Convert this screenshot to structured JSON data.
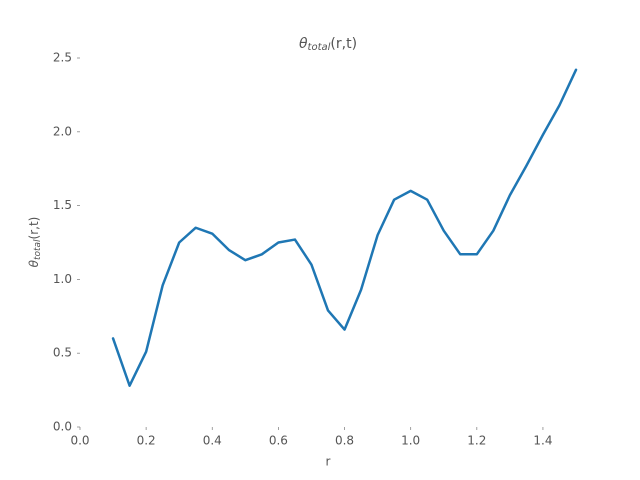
{
  "chart_data": {
    "type": "line",
    "title": [
      "θ",
      "total",
      "(r,t)"
    ],
    "xlabel": "r",
    "ylabel": [
      "θ",
      "total",
      "(r,t)"
    ],
    "x": [
      0.1,
      0.15,
      0.2,
      0.25,
      0.3,
      0.35,
      0.4,
      0.45,
      0.5,
      0.55,
      0.6,
      0.65,
      0.7,
      0.75,
      0.8,
      0.85,
      0.9,
      0.95,
      1.0,
      1.05,
      1.1,
      1.15,
      1.2,
      1.25,
      1.3,
      1.35,
      1.4,
      1.45,
      1.5
    ],
    "series": [
      {
        "color": "#1f77b4",
        "values": [
          0.6,
          0.28,
          0.51,
          0.96,
          1.25,
          1.35,
          1.31,
          1.2,
          1.13,
          1.17,
          1.25,
          1.27,
          1.1,
          0.79,
          0.66,
          0.93,
          1.3,
          1.54,
          1.6,
          1.54,
          1.33,
          1.17,
          1.17,
          1.33,
          1.57,
          1.77,
          1.98,
          2.18,
          2.42
        ]
      }
    ],
    "xlim": [
      0,
      1.5
    ],
    "ylim": [
      0,
      2.5
    ],
    "xticks": [
      {
        "value": 0,
        "label": "0.0"
      },
      {
        "value": 0.2,
        "label": "0.2"
      },
      {
        "value": 0.4,
        "label": "0.4"
      },
      {
        "value": 0.6,
        "label": "0.6"
      },
      {
        "value": 0.8,
        "label": "0.8"
      },
      {
        "value": 1,
        "label": "1.0"
      },
      {
        "value": 1.2,
        "label": "1.2"
      },
      {
        "value": 1.4,
        "label": "1.4"
      }
    ],
    "yticks": [
      {
        "value": 0,
        "label": "0.0"
      },
      {
        "value": 0.5,
        "label": "0.5"
      },
      {
        "value": 1,
        "label": "1.0"
      },
      {
        "value": 1.5,
        "label": "1.5"
      },
      {
        "value": 2,
        "label": "2.0"
      },
      {
        "value": 2.5,
        "label": "2.5"
      }
    ],
    "grid": false
  }
}
